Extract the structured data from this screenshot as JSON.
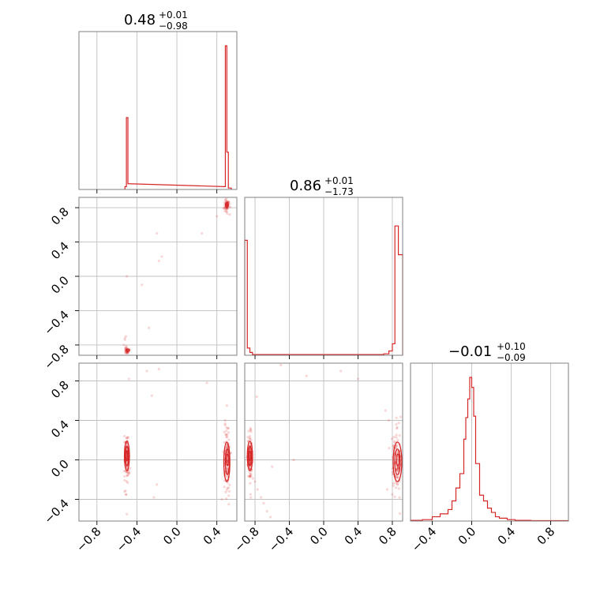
{
  "colors": {
    "series": "#d62728",
    "grid": "#c0c0c0",
    "frame": "#808080"
  },
  "chart_data": {
    "type": "corner",
    "parameters": 3,
    "axis_ranges": [
      [
        -0.98,
        0.6
      ],
      [
        -0.92,
        0.92
      ],
      [
        -0.62,
        0.98
      ]
    ],
    "grid": true,
    "titles": [
      {
        "median": "0.48",
        "plus": "+0.01",
        "minus": "−0.98"
      },
      {
        "median": "0.86",
        "plus": "+0.01",
        "minus": "−1.73"
      },
      {
        "median": "−0.01",
        "plus": "+0.10",
        "minus": "−0.09"
      }
    ],
    "x_ticks": [
      [
        {
          "value": -0.8,
          "label": "−0.8"
        },
        {
          "value": -0.4,
          "label": "−0.4"
        },
        {
          "value": 0.0,
          "label": "0.0"
        },
        {
          "value": 0.4,
          "label": "0.4"
        }
      ],
      [
        {
          "value": -0.8,
          "label": "−0.8"
        },
        {
          "value": -0.4,
          "label": "−0.4"
        },
        {
          "value": 0.0,
          "label": "0.0"
        },
        {
          "value": 0.4,
          "label": "0.4"
        },
        {
          "value": 0.8,
          "label": "0.8"
        }
      ],
      [
        {
          "value": -0.4,
          "label": "−0.4"
        },
        {
          "value": 0.0,
          "label": "0.0"
        },
        {
          "value": 0.4,
          "label": "0.4"
        },
        {
          "value": 0.8,
          "label": "0.8"
        }
      ]
    ],
    "y_ticks": [
      null,
      [
        {
          "value": 0.8,
          "label": "0.8"
        },
        {
          "value": 0.4,
          "label": "0.4"
        },
        {
          "value": 0.0,
          "label": "0.0"
        },
        {
          "value": -0.4,
          "label": "−0.4"
        },
        {
          "value": -0.8,
          "label": "−0.8"
        }
      ],
      [
        {
          "value": 0.8,
          "label": "0.8"
        },
        {
          "value": 0.4,
          "label": "0.4"
        },
        {
          "value": 0.0,
          "label": "0.0"
        },
        {
          "value": -0.4,
          "label": "−0.4"
        }
      ]
    ],
    "histograms": [
      {
        "param": 0,
        "bins": [
          {
            "x0": -0.52,
            "x1": -0.505,
            "h": 0.02
          },
          {
            "x0": -0.505,
            "x1": -0.49,
            "h": 0.5
          },
          {
            "x0": -0.49,
            "x1": -0.475,
            "h": 0.04
          },
          {
            "x0": 0.47,
            "x1": 0.485,
            "h": 0.02
          },
          {
            "x0": 0.485,
            "x1": 0.5,
            "h": 1.0
          },
          {
            "x0": 0.5,
            "x1": 0.515,
            "h": 0.26
          },
          {
            "x0": 0.515,
            "x1": 0.545,
            "h": 0.01
          }
        ]
      },
      {
        "param": 1,
        "bins": [
          {
            "x0": -0.92,
            "x1": -0.89,
            "h": 0.8
          },
          {
            "x0": -0.89,
            "x1": -0.86,
            "h": 0.05
          },
          {
            "x0": -0.86,
            "x1": -0.83,
            "h": 0.02
          },
          {
            "x0": -0.83,
            "x1": 0.7,
            "h": 0.005
          },
          {
            "x0": 0.7,
            "x1": 0.76,
            "h": 0.01
          },
          {
            "x0": 0.76,
            "x1": 0.8,
            "h": 0.03
          },
          {
            "x0": 0.8,
            "x1": 0.83,
            "h": 0.08
          },
          {
            "x0": 0.83,
            "x1": 0.87,
            "h": 0.9
          },
          {
            "x0": 0.87,
            "x1": 0.92,
            "h": 0.7
          }
        ]
      },
      {
        "param": 2,
        "bins": [
          {
            "x0": -0.62,
            "x1": -0.5,
            "h": 0.005
          },
          {
            "x0": -0.5,
            "x1": -0.4,
            "h": 0.01
          },
          {
            "x0": -0.4,
            "x1": -0.32,
            "h": 0.03
          },
          {
            "x0": -0.32,
            "x1": -0.24,
            "h": 0.05
          },
          {
            "x0": -0.24,
            "x1": -0.2,
            "h": 0.08
          },
          {
            "x0": -0.2,
            "x1": -0.16,
            "h": 0.14
          },
          {
            "x0": -0.16,
            "x1": -0.12,
            "h": 0.23
          },
          {
            "x0": -0.12,
            "x1": -0.08,
            "h": 0.33
          },
          {
            "x0": -0.08,
            "x1": -0.06,
            "h": 0.57
          },
          {
            "x0": -0.06,
            "x1": -0.04,
            "h": 0.72
          },
          {
            "x0": -0.04,
            "x1": -0.02,
            "h": 0.85
          },
          {
            "x0": -0.02,
            "x1": 0.0,
            "h": 1.0
          },
          {
            "x0": 0.0,
            "x1": 0.02,
            "h": 0.93
          },
          {
            "x0": 0.02,
            "x1": 0.04,
            "h": 0.73
          },
          {
            "x0": 0.04,
            "x1": 0.08,
            "h": 0.4
          },
          {
            "x0": 0.08,
            "x1": 0.12,
            "h": 0.18
          },
          {
            "x0": 0.12,
            "x1": 0.16,
            "h": 0.14
          },
          {
            "x0": 0.16,
            "x1": 0.2,
            "h": 0.09
          },
          {
            "x0": 0.2,
            "x1": 0.24,
            "h": 0.06
          },
          {
            "x0": 0.24,
            "x1": 0.28,
            "h": 0.03
          },
          {
            "x0": 0.28,
            "x1": 0.36,
            "h": 0.02
          },
          {
            "x0": 0.36,
            "x1": 0.44,
            "h": 0.01
          },
          {
            "x0": 0.44,
            "x1": 0.6,
            "h": 0.005
          },
          {
            "x0": 0.6,
            "x1": 0.98,
            "h": 0.003
          }
        ]
      }
    ],
    "scatter": [
      {
        "x_param": 0,
        "y_param": 1,
        "clusters": [
          {
            "x": 0.5,
            "y": 0.83,
            "sx": 0.012,
            "sy": 0.04,
            "n": 60
          },
          {
            "x": -0.5,
            "y": -0.86,
            "sx": 0.01,
            "sy": 0.02,
            "n": 40
          }
        ],
        "points": [
          [
            -0.52,
            -0.72
          ],
          [
            -0.52,
            -0.74
          ],
          [
            -0.51,
            -0.7
          ],
          [
            0.25,
            0.5
          ],
          [
            -0.2,
            0.5
          ],
          [
            -0.15,
            0.23
          ],
          [
            -0.18,
            0.18
          ],
          [
            -0.35,
            -0.1
          ],
          [
            -0.5,
            0.0
          ],
          [
            -0.53,
            -0.8
          ],
          [
            0.4,
            0.7
          ],
          [
            0.48,
            0.76
          ],
          [
            0.53,
            0.72
          ],
          [
            -0.28,
            -0.6
          ]
        ]
      },
      {
        "x_param": 0,
        "y_param": 2,
        "clusters": [
          {
            "x": -0.5,
            "y": 0.02,
            "sx": 0.012,
            "sy": 0.12,
            "n": 110
          },
          {
            "x": 0.5,
            "y": 0.0,
            "sx": 0.015,
            "sy": 0.17,
            "n": 120
          }
        ],
        "points": [
          [
            -0.48,
            0.82
          ],
          [
            -0.3,
            0.9
          ],
          [
            -0.25,
            0.65
          ],
          [
            0.3,
            0.78
          ],
          [
            -0.2,
            -0.25
          ],
          [
            -0.23,
            -0.38
          ],
          [
            -0.5,
            -0.55
          ],
          [
            0.5,
            0.55
          ],
          [
            0.52,
            -0.45
          ],
          [
            0.45,
            -0.4
          ],
          [
            -0.18,
            0.92
          ]
        ]
      },
      {
        "x_param": 1,
        "y_param": 2,
        "clusters": [
          {
            "x": -0.86,
            "y": 0.02,
            "sx": 0.015,
            "sy": 0.12,
            "n": 110
          },
          {
            "x": 0.85,
            "y": 0.0,
            "sx": 0.025,
            "sy": 0.17,
            "n": 120
          }
        ],
        "points": [
          [
            -0.8,
            -0.22
          ],
          [
            -0.77,
            -0.3
          ],
          [
            -0.73,
            -0.38
          ],
          [
            -0.7,
            -0.44
          ],
          [
            -0.66,
            -0.52
          ],
          [
            -0.62,
            -0.58
          ],
          [
            -0.78,
            0.64
          ],
          [
            -0.5,
            0.96
          ],
          [
            -0.2,
            0.85
          ],
          [
            0.2,
            0.9
          ],
          [
            0.4,
            0.82
          ],
          [
            0.72,
            0.5
          ],
          [
            0.76,
            0.4
          ],
          [
            0.8,
            -0.35
          ],
          [
            0.74,
            -0.3
          ],
          [
            -0.6,
            -0.07
          ],
          [
            -0.35,
            0.0
          ],
          [
            -0.85,
            0.3
          ]
        ]
      }
    ],
    "contours": [
      {
        "x_param": 0,
        "y_param": 1,
        "levels": [
          {
            "x": 0.5,
            "y": 0.83,
            "rx": 0.015,
            "ry": 0.03
          },
          {
            "x": 0.505,
            "y": 0.84,
            "rx": 0.009,
            "ry": 0.018
          },
          {
            "x": -0.49,
            "y": -0.86,
            "rx": 0.018,
            "ry": 0.012
          }
        ]
      },
      {
        "x_param": 0,
        "y_param": 2,
        "levels": [
          {
            "x": -0.5,
            "y": 0.04,
            "rx": 0.025,
            "ry": 0.15
          },
          {
            "x": -0.5,
            "y": 0.04,
            "rx": 0.016,
            "ry": 0.1
          },
          {
            "x": -0.5,
            "y": 0.04,
            "rx": 0.008,
            "ry": 0.05
          },
          {
            "x": 0.5,
            "y": -0.02,
            "rx": 0.03,
            "ry": 0.2
          },
          {
            "x": 0.505,
            "y": -0.02,
            "rx": 0.02,
            "ry": 0.13
          },
          {
            "x": 0.505,
            "y": 0.0,
            "rx": 0.01,
            "ry": 0.06
          }
        ]
      },
      {
        "x_param": 1,
        "y_param": 2,
        "levels": [
          {
            "x": -0.86,
            "y": 0.04,
            "rx": 0.03,
            "ry": 0.15
          },
          {
            "x": -0.86,
            "y": 0.04,
            "rx": 0.018,
            "ry": 0.1
          },
          {
            "x": -0.86,
            "y": 0.04,
            "rx": 0.009,
            "ry": 0.05
          },
          {
            "x": 0.86,
            "y": -0.02,
            "rx": 0.05,
            "ry": 0.2
          },
          {
            "x": 0.86,
            "y": -0.02,
            "rx": 0.032,
            "ry": 0.13
          },
          {
            "x": 0.865,
            "y": 0.0,
            "rx": 0.015,
            "ry": 0.06
          }
        ]
      }
    ]
  }
}
